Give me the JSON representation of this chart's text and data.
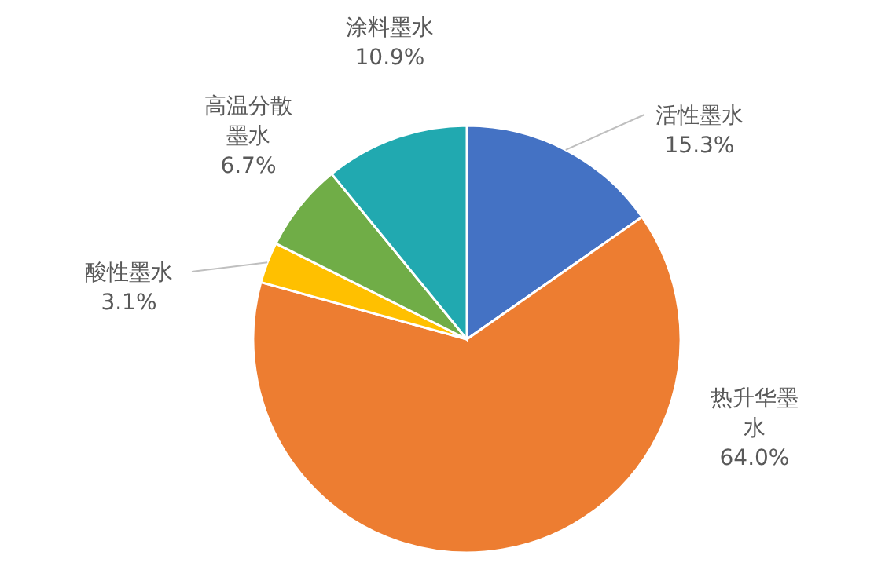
{
  "chart_data": {
    "type": "pie",
    "categories": [
      "活性墨水",
      "热升华墨水",
      "酸性墨水",
      "高温分散墨水",
      "涂料墨水"
    ],
    "values": [
      15.3,
      64.0,
      3.1,
      6.7,
      10.9
    ],
    "value_labels": [
      "15.3%",
      "64.0%",
      "3.1%",
      "6.7%",
      "10.9%"
    ],
    "colors": [
      "#4472c4",
      "#ed7d31",
      "#ffc000",
      "#70ad47",
      "#21a9b0"
    ]
  }
}
